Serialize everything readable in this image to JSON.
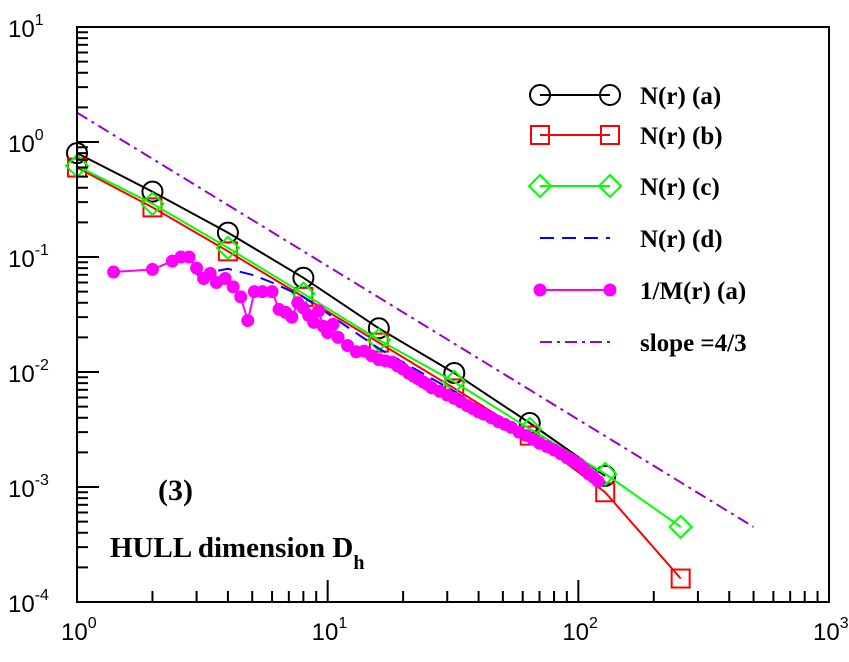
{
  "chart_data": {
    "type": "line",
    "scale": {
      "x": "log",
      "y": "log"
    },
    "xlim": [
      1,
      1000
    ],
    "ylim": [
      0.0001,
      10
    ],
    "x_ticks": [
      {
        "base": "10",
        "exp": "0",
        "value": 1
      },
      {
        "base": "10",
        "exp": "1",
        "value": 10
      },
      {
        "base": "10",
        "exp": "2",
        "value": 100
      },
      {
        "base": "10",
        "exp": "3",
        "value": 1000
      }
    ],
    "y_ticks": [
      {
        "base": "10",
        "exp": "-4",
        "value": 0.0001
      },
      {
        "base": "10",
        "exp": "-3",
        "value": 0.001
      },
      {
        "base": "10",
        "exp": "-2",
        "value": 0.01
      },
      {
        "base": "10",
        "exp": "-1",
        "value": 0.1
      },
      {
        "base": "10",
        "exp": "0",
        "value": 1
      },
      {
        "base": "10",
        "exp": "1",
        "value": 10
      }
    ],
    "annotations": {
      "panel": "(3)",
      "title_main": "HULL dimension D",
      "title_sub": "h"
    },
    "legend_position": "top-right",
    "series": [
      {
        "name": "N(r)    (a)",
        "color": "#000000",
        "marker": "circle",
        "line": "solid",
        "points": [
          [
            1,
            0.8
          ],
          [
            2,
            0.37
          ],
          [
            4,
            0.163
          ],
          [
            8,
            0.066
          ],
          [
            16,
            0.024
          ],
          [
            32,
            0.0098
          ],
          [
            64,
            0.0036
          ],
          [
            128,
            0.00125
          ]
        ]
      },
      {
        "name": "N(r)    (b)",
        "color": "#ff0000",
        "marker": "square",
        "line": "solid",
        "points": [
          [
            1,
            0.6
          ],
          [
            2,
            0.27
          ],
          [
            4,
            0.112
          ],
          [
            8,
            0.045
          ],
          [
            16,
            0.018
          ],
          [
            32,
            0.0072
          ],
          [
            64,
            0.0028
          ],
          [
            128,
            0.0009
          ],
          [
            256,
            0.00016
          ]
        ]
      },
      {
        "name": "N(r)    (c)",
        "color": "#00ff00",
        "marker": "diamond",
        "line": "solid",
        "points": [
          [
            1,
            0.62
          ],
          [
            2,
            0.29
          ],
          [
            4,
            0.12
          ],
          [
            8,
            0.048
          ],
          [
            16,
            0.019
          ],
          [
            32,
            0.0082
          ],
          [
            64,
            0.0032
          ],
          [
            128,
            0.0013
          ],
          [
            256,
            0.00045
          ]
        ]
      },
      {
        "name": "N(r)    (d)",
        "color": "#0000ff",
        "marker": "none",
        "line": "dashed",
        "points": [
          [
            3,
            0.07
          ],
          [
            4,
            0.079
          ],
          [
            5,
            0.07
          ],
          [
            6,
            0.06
          ],
          [
            8,
            0.045
          ],
          [
            16,
            0.016
          ],
          [
            32,
            0.0068
          ],
          [
            64,
            0.0025
          ],
          [
            128,
            0.0011
          ]
        ]
      },
      {
        "name": "1/M(r) (a)",
        "color": "#ff00ff",
        "marker": "dot",
        "line": "solid",
        "points": [
          [
            1.4,
            0.074
          ],
          [
            2,
            0.078
          ],
          [
            2.4,
            0.092
          ],
          [
            2.6,
            0.1
          ],
          [
            2.8,
            0.1
          ],
          [
            3,
            0.08
          ],
          [
            3.2,
            0.065
          ],
          [
            3.4,
            0.072
          ],
          [
            3.6,
            0.06
          ],
          [
            3.9,
            0.065
          ],
          [
            4.2,
            0.055
          ],
          [
            4.5,
            0.045
          ],
          [
            4.8,
            0.028
          ],
          [
            5.1,
            0.05
          ],
          [
            5.5,
            0.05
          ],
          [
            6,
            0.05
          ],
          [
            6.4,
            0.035
          ],
          [
            6.8,
            0.033
          ],
          [
            7.2,
            0.03
          ],
          [
            7.6,
            0.04
          ],
          [
            8,
            0.036
          ],
          [
            8.4,
            0.031
          ],
          [
            8.8,
            0.027
          ],
          [
            9.2,
            0.034
          ],
          [
            9.6,
            0.025
          ],
          [
            10,
            0.022
          ],
          [
            10.5,
            0.026
          ],
          [
            11,
            0.02
          ],
          [
            12,
            0.017
          ],
          [
            13,
            0.015
          ],
          [
            14,
            0.0152
          ],
          [
            15,
            0.0138
          ],
          [
            16,
            0.0128
          ],
          [
            17,
            0.0125
          ],
          [
            18,
            0.0122
          ],
          [
            19,
            0.0113
          ],
          [
            20,
            0.0106
          ],
          [
            21,
            0.0098
          ],
          [
            22,
            0.0092
          ],
          [
            23,
            0.0087
          ],
          [
            24,
            0.0082
          ],
          [
            25,
            0.0078
          ],
          [
            26,
            0.0073
          ],
          [
            28,
            0.0068
          ],
          [
            30,
            0.0063
          ],
          [
            32,
            0.0059
          ],
          [
            34,
            0.0055
          ],
          [
            36,
            0.0051
          ],
          [
            38,
            0.0048
          ],
          [
            40,
            0.0045
          ],
          [
            42,
            0.0043
          ],
          [
            45,
            0.004
          ],
          [
            48,
            0.0037
          ],
          [
            51,
            0.0035
          ],
          [
            54,
            0.0033
          ],
          [
            58,
            0.003
          ],
          [
            62,
            0.0028
          ],
          [
            66,
            0.0026
          ],
          [
            70,
            0.0024
          ],
          [
            75,
            0.00225
          ],
          [
            80,
            0.0021
          ],
          [
            85,
            0.00195
          ],
          [
            90,
            0.0018
          ],
          [
            95,
            0.0017
          ],
          [
            100,
            0.0016
          ],
          [
            105,
            0.00145
          ],
          [
            110,
            0.0013
          ],
          [
            115,
            0.00122
          ],
          [
            120,
            0.00112
          ]
        ]
      },
      {
        "name": "slope =4/3",
        "color": "#9900cc",
        "marker": "none",
        "line": "dashdot",
        "points": [
          [
            1,
            1.8
          ],
          [
            500,
            0.00045
          ]
        ]
      }
    ]
  }
}
